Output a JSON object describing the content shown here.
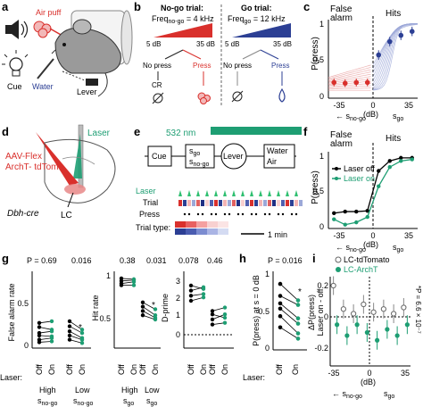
{
  "panel_labels": [
    "a",
    "b",
    "c",
    "d",
    "e",
    "f",
    "g",
    "h",
    "i"
  ],
  "a": {
    "air_puff": "Air puff",
    "cue": "Cue",
    "water": "Water",
    "lever": "Lever"
  },
  "b": {
    "nogo_title": "No-go trial:",
    "nogo_freq_main": "Freq",
    "nogo_freq_sub": "no-go",
    "nogo_freq_val": " = 4 kHz",
    "go_title": "Go trial:",
    "go_freq_main": "Freq",
    "go_freq_sub": "go",
    "go_freq_val": " = 12 kHz",
    "db_lo": "5 dB",
    "db_hi": "35 dB",
    "no_press": "No press",
    "press": "Press",
    "cr": "CR"
  },
  "c": {
    "false_alarm_1": "False",
    "false_alarm_2": "alarm",
    "hits": "Hits",
    "ylabel": "P(press)",
    "yticks": [
      "1",
      "0.5",
      "0"
    ],
    "xticks": [
      "-35",
      "0",
      "35"
    ],
    "xunit": "(dB)",
    "s_nogo": "s",
    "s_nogo_sub": "no-go",
    "s_go": "s",
    "s_go_sub": "go"
  },
  "d": {
    "laser": "Laser",
    "virus_1": "AAV-Flex",
    "virus_2": "ArchT- tdTom",
    "lc": "LC",
    "mouse": "Dbh-cre"
  },
  "e": {
    "nm": "532 nm",
    "cue": "Cue",
    "s_main": "s",
    "s_sub1": "go",
    "s_sub2": "no-go",
    "lever": "Lever",
    "water": "Water",
    "air": "Air",
    "laser": "Laser",
    "trial": "Trial",
    "press": "Press",
    "trial_type": "Trial type:",
    "scale": "1 min"
  },
  "f": {
    "false_alarm_1": "False",
    "false_alarm_2": "alarm",
    "hits": "Hits",
    "ylabel": "P(press)",
    "legend_off": "Laser off",
    "legend_on": "Laser on",
    "yticks": [
      "1",
      "0.5",
      "0"
    ],
    "xticks": [
      "-35",
      "0",
      "35"
    ],
    "xunit": "(dB)",
    "s_nogo": "s",
    "s_nogo_sub": "no-go",
    "s_go": "s",
    "s_go_sub": "go"
  },
  "g": {
    "p1": "P = 0.69",
    "p2": "0.016",
    "p3": "0.38",
    "p4": "0.031",
    "p5": "0.078",
    "p6": "0.46",
    "y1": "False alarm rate",
    "y2": "Hit rate",
    "y3": "D-prime",
    "yt1": [
      "0.5",
      "0"
    ],
    "yt2": [
      "1",
      "0.5"
    ],
    "yt3": [
      "3",
      "2",
      "1",
      "0"
    ],
    "off": "Off",
    "on": "On",
    "laser": "Laser:",
    "high": "High",
    "low": "Low",
    "s": "s",
    "nogo": "no-go",
    "go": "go",
    "star": "*"
  },
  "h": {
    "p": "P = 0.016",
    "ylabel": "P(press) at s = 0 dB",
    "yticks": [
      "1",
      "0.5",
      "0"
    ],
    "off": "Off",
    "on": "On",
    "laser": "Laser:",
    "star": "*"
  },
  "i": {
    "legend1": "LC-tdTomato",
    "legend2": "LC-ArchT",
    "ylabel_1": "ΔP(press)",
    "ylabel_2": "Laser on - off",
    "yticks": [
      "0.2",
      "0",
      "-0.2"
    ],
    "xticks": [
      "-35",
      "0",
      "35"
    ],
    "xunit": "(dB)",
    "s_nogo": "s",
    "s_nogo_sub": "no-go",
    "s_go": "s",
    "s_go_sub": "go",
    "pval": "*P = 6.6 × 10⁻⁷"
  },
  "colors": {
    "red": "#d9302c",
    "blue": "#2c3f94",
    "green": "#1e9e73",
    "lightgreen": "#2fbf70",
    "pink": "#e8a0a0",
    "lightblue": "#9ca8d8"
  },
  "chart_data": [
    {
      "type": "scatter",
      "panel": "c",
      "xlabel": "(dB)",
      "ylabel": "P(press)",
      "xlim": [
        -40,
        40
      ],
      "ylim": [
        0,
        1
      ],
      "series": [
        {
          "x": [
            -35,
            -25,
            -15,
            -5
          ],
          "values": [
            0.2,
            0.19,
            0.2,
            0.2
          ]
        },
        {
          "x": [
            5,
            15,
            25,
            35
          ],
          "values": [
            0.55,
            0.72,
            0.8,
            0.85
          ]
        }
      ]
    },
    {
      "type": "line",
      "panel": "f",
      "xlabel": "(dB)",
      "ylabel": "P(press)",
      "xlim": [
        -40,
        40
      ],
      "ylim": [
        0,
        1
      ],
      "series": [
        {
          "name": "Laser off",
          "x": [
            -35,
            -25,
            -15,
            -5,
            5,
            15,
            25,
            35
          ],
          "values": [
            0.2,
            0.22,
            0.22,
            0.23,
            0.75,
            0.88,
            0.92,
            0.92
          ]
        },
        {
          "name": "Laser on",
          "x": [
            -35,
            -25,
            -15,
            -5,
            5,
            15,
            25,
            35
          ],
          "values": [
            0.12,
            0.05,
            0.08,
            0.15,
            0.55,
            0.8,
            0.88,
            0.9
          ]
        }
      ]
    },
    {
      "type": "scatter",
      "panel": "h",
      "ylabel": "P(press) at s = 0 dB",
      "ylim": [
        0,
        1
      ],
      "categories": [
        "Off",
        "On"
      ],
      "series": [
        {
          "values": [
            [
              0.88,
              0.66
            ],
            [
              0.72,
              0.6
            ],
            [
              0.62,
              0.42
            ],
            [
              0.55,
              0.35
            ],
            [
              0.45,
              0.22
            ],
            [
              0.3,
              0.15
            ]
          ]
        }
      ]
    },
    {
      "type": "scatter",
      "panel": "i",
      "xlabel": "(dB)",
      "ylabel": "ΔP(press) Laser on - off",
      "ylim": [
        -0.3,
        0.3
      ],
      "series": [
        {
          "name": "LC-tdTomato",
          "x": [
            -35,
            -25,
            -15,
            -5,
            5,
            15,
            25,
            35
          ],
          "values": [
            0.2,
            0.05,
            0.02,
            0.08,
            0.03,
            0.05,
            0.02,
            0.06
          ]
        },
        {
          "name": "LC-ArchT",
          "x": [
            -35,
            -25,
            -15,
            -5,
            5,
            15,
            25,
            35
          ],
          "values": [
            -0.05,
            -0.12,
            -0.05,
            -0.1,
            -0.15,
            -0.08,
            -0.12,
            -0.05
          ]
        }
      ]
    }
  ]
}
